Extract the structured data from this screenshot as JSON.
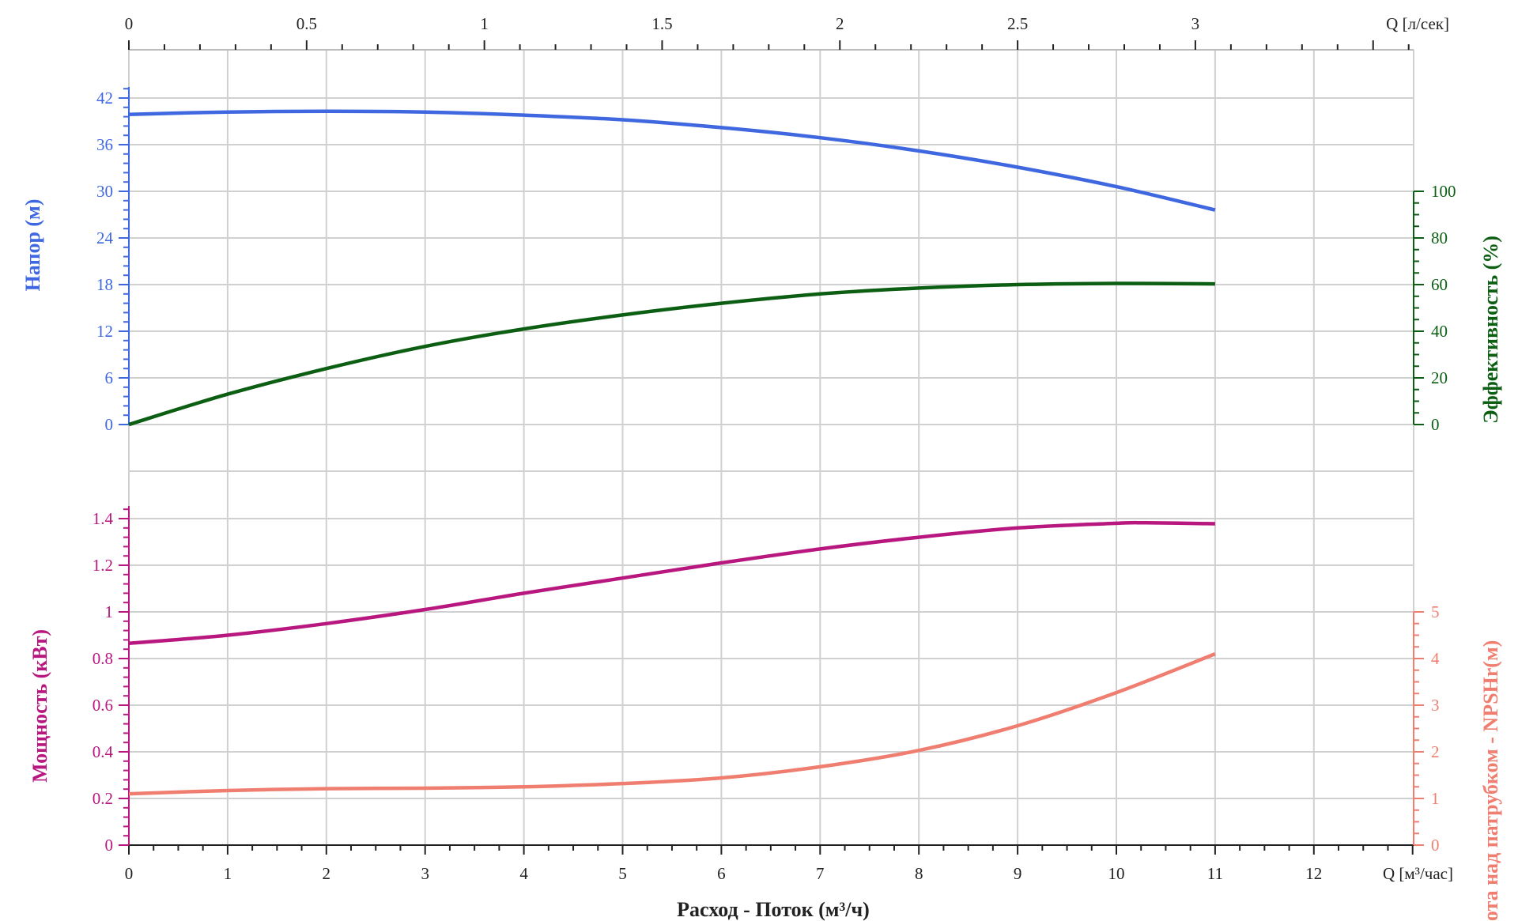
{
  "colors": {
    "head": "#3f68e0",
    "efficiency": "#0b5e12",
    "power": "#b8177f",
    "npsh": "#f07e70",
    "axis": "#222222",
    "grid": "#d0d0d0"
  },
  "chart_data": {
    "type": "line",
    "x_bottom": {
      "label": "Расход - Поток (м³/ч)",
      "unit_label": "Q [м³/час]",
      "range": [
        0,
        13
      ],
      "ticks": [
        "0",
        "1",
        "2",
        "3",
        "4",
        "5",
        "6",
        "7",
        "8",
        "9",
        "10",
        "11",
        "12"
      ]
    },
    "x_top": {
      "unit_label": "Q [л/сек]",
      "range": [
        0,
        3.6111
      ],
      "ticks": [
        "0",
        "0.5",
        "1",
        "1.5",
        "2",
        "2.5",
        "3"
      ]
    },
    "upper_panel": {
      "left_axis": {
        "label": "Напор (м)",
        "ticks": [
          "0",
          "6",
          "12",
          "18",
          "24",
          "30",
          "36",
          "42"
        ]
      },
      "right_axis": {
        "label": "Эффективность (%)",
        "ticks": [
          "0",
          "20",
          "40",
          "60",
          "80",
          "100"
        ]
      },
      "series": [
        {
          "name": "Напор (м)",
          "axis": "left",
          "x": [
            0,
            1,
            2,
            3,
            4,
            5,
            6,
            7,
            8,
            9,
            10,
            11
          ],
          "y": [
            39.9,
            40.2,
            40.3,
            40.2,
            39.8,
            39.2,
            38.2,
            36.9,
            35.2,
            33.1,
            30.6,
            27.6
          ]
        },
        {
          "name": "Эффективность (%)",
          "axis": "right",
          "x": [
            0,
            1,
            2,
            3,
            4,
            5,
            6,
            7,
            8,
            9,
            10,
            11
          ],
          "y": [
            0,
            13,
            24,
            33.5,
            41,
            47,
            52,
            56,
            58.5,
            60,
            60.5,
            60.3
          ]
        }
      ]
    },
    "lower_panel": {
      "left_axis": {
        "label": "Мощность (кВт)",
        "ticks": [
          "0",
          "0.2",
          "0.4",
          "0.6",
          "0.8",
          "1",
          "1.2",
          "1.4"
        ]
      },
      "right_axis": {
        "label": "Высота над патрубком - NPSHr(м)",
        "ticks": [
          "0",
          "1",
          "2",
          "3",
          "4",
          "5"
        ]
      },
      "series": [
        {
          "name": "Мощность (кВт)",
          "axis": "left",
          "x": [
            0,
            1,
            2,
            3,
            4,
            5,
            6,
            7,
            8,
            9,
            10,
            10.3,
            11
          ],
          "y": [
            0.865,
            0.9,
            0.95,
            1.01,
            1.08,
            1.145,
            1.21,
            1.27,
            1.32,
            1.36,
            1.38,
            1.382,
            1.378
          ]
        },
        {
          "name": "Высота над патрубком - NPSHr(м)",
          "axis": "right",
          "x": [
            0,
            1,
            2,
            3,
            4,
            5,
            6,
            7,
            8,
            9,
            10,
            11
          ],
          "y": [
            1.1,
            1.17,
            1.21,
            1.22,
            1.25,
            1.32,
            1.44,
            1.68,
            2.03,
            2.56,
            3.27,
            4.1
          ]
        }
      ]
    }
  }
}
